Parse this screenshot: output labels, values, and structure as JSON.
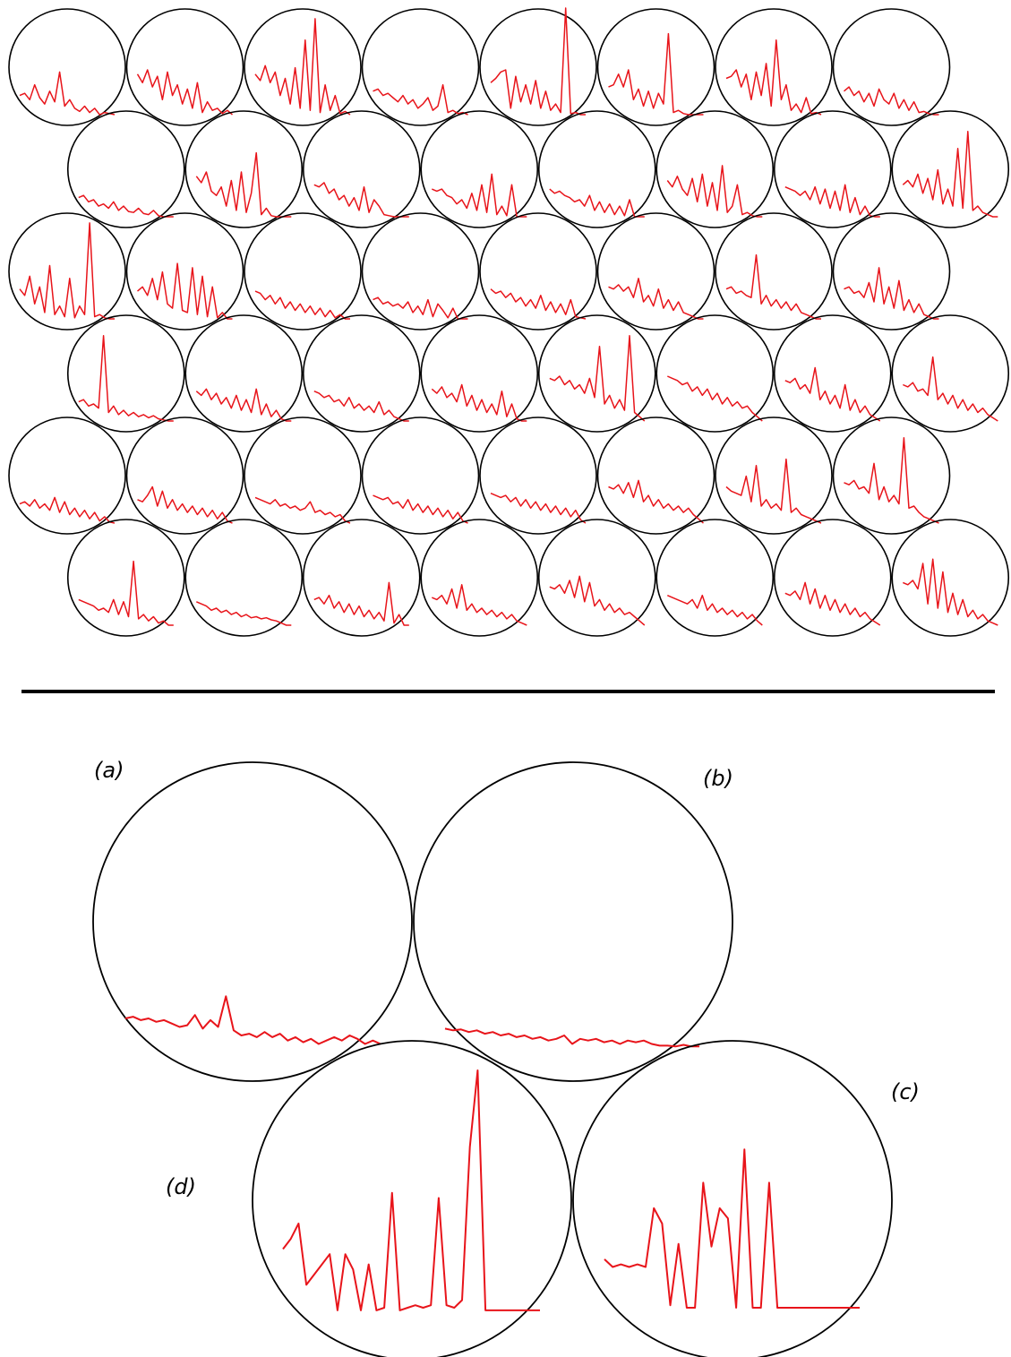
{
  "colors": {
    "background": "#ffffff",
    "circle_stroke": "#000000",
    "trace": "#e8141a",
    "divider": "#000000"
  },
  "grid": {
    "rows": 6,
    "cols": 8,
    "odd_rows_offset": true,
    "traces": [
      [
        [
          0.82,
          0.8,
          0.86,
          0.72,
          0.84,
          0.9,
          0.78,
          0.88,
          0.6,
          0.92,
          0.86,
          0.94,
          0.97,
          0.92,
          0.98,
          0.94,
          1,
          0.98,
          0.99,
          1
        ],
        [
          0.62,
          0.7,
          0.58,
          0.74,
          0.64,
          0.86,
          0.6,
          0.82,
          0.72,
          0.9,
          0.76,
          0.94,
          0.7,
          0.98,
          0.88,
          0.96,
          0.94,
          0.99,
          0.96,
          1
        ],
        [
          0.62,
          0.68,
          0.54,
          0.7,
          0.6,
          0.82,
          0.66,
          0.9,
          0.56,
          0.94,
          0.3,
          0.96,
          0.1,
          0.98,
          0.72,
          0.96,
          0.82,
          0.99,
          0.97,
          1
        ],
        [
          0.78,
          0.76,
          0.82,
          0.8,
          0.84,
          0.88,
          0.82,
          0.9,
          0.86,
          0.94,
          0.9,
          0.84,
          0.96,
          0.92,
          0.72,
          0.98,
          0.96,
          0.99,
          0.98,
          1
        ],
        [
          0.7,
          0.66,
          0.6,
          0.58,
          0.94,
          0.64,
          0.88,
          0.72,
          0.9,
          0.68,
          0.94,
          0.78,
          0.96,
          0.9,
          0.98,
          0.0,
          0.99,
          0.98,
          1,
          1
        ],
        [
          0.74,
          0.72,
          0.62,
          0.74,
          0.58,
          0.86,
          0.76,
          0.92,
          0.78,
          0.94,
          0.8,
          0.9,
          0.24,
          0.98,
          0.96,
          0.99,
          1,
          1,
          1,
          1
        ],
        [
          0.66,
          0.64,
          0.58,
          0.74,
          0.62,
          0.86,
          0.6,
          0.82,
          0.52,
          0.92,
          0.3,
          0.86,
          0.72,
          0.96,
          0.9,
          0.98,
          0.84,
          0.99,
          0.98,
          1
        ],
        [
          0.78,
          0.74,
          0.82,
          0.78,
          0.88,
          0.8,
          0.92,
          0.76,
          0.86,
          0.9,
          0.8,
          0.94,
          0.86,
          0.96,
          0.88,
          0.98,
          0.97,
          0.99,
          1,
          1
        ]
      ],
      [
        [
          0.82,
          0.8,
          0.86,
          0.84,
          0.9,
          0.88,
          0.92,
          0.86,
          0.94,
          0.9,
          0.95,
          0.96,
          0.92,
          0.97,
          0.98,
          0.94,
          0.99,
          1,
          1,
          1
        ],
        [
          0.62,
          0.68,
          0.58,
          0.76,
          0.8,
          0.72,
          0.9,
          0.66,
          0.94,
          0.58,
          0.96,
          0.78,
          0.4,
          0.98,
          0.92,
          0.99,
          1,
          1,
          1,
          1
        ],
        [
          0.7,
          0.72,
          0.68,
          0.78,
          0.74,
          0.84,
          0.8,
          0.9,
          0.82,
          0.94,
          0.72,
          0.96,
          0.84,
          0.9,
          0.98,
          0.99,
          1,
          1,
          1,
          1
        ],
        [
          0.74,
          0.76,
          0.74,
          0.8,
          0.82,
          0.88,
          0.84,
          0.92,
          0.78,
          0.94,
          0.7,
          0.96,
          0.6,
          0.98,
          0.9,
          0.99,
          0.7,
          1,
          1,
          1
        ],
        [
          0.74,
          0.78,
          0.76,
          0.8,
          0.82,
          0.86,
          0.84,
          0.9,
          0.8,
          0.94,
          0.86,
          0.96,
          0.88,
          0.98,
          0.9,
          0.99,
          0.84,
          1,
          1,
          1
        ],
        [
          0.66,
          0.72,
          0.62,
          0.74,
          0.8,
          0.64,
          0.86,
          0.6,
          0.9,
          0.68,
          0.94,
          0.52,
          0.96,
          0.9,
          0.7,
          0.98,
          0.96,
          0.99,
          1,
          1
        ],
        [
          0.72,
          0.74,
          0.76,
          0.8,
          0.76,
          0.84,
          0.72,
          0.88,
          0.74,
          0.92,
          0.76,
          0.94,
          0.7,
          0.96,
          0.82,
          0.98,
          0.9,
          0.99,
          1,
          1
        ],
        [
          0.7,
          0.66,
          0.72,
          0.6,
          0.78,
          0.64,
          0.84,
          0.56,
          0.88,
          0.74,
          0.9,
          0.36,
          0.92,
          0.2,
          0.94,
          0.9,
          0.96,
          0.98,
          1,
          1
        ]
      ],
      [
        [
          0.72,
          0.78,
          0.6,
          0.86,
          0.7,
          0.94,
          0.5,
          0.96,
          0.88,
          0.98,
          0.62,
          0.99,
          0.88,
          0.96,
          0.1,
          0.98,
          0.96,
          0.99,
          1,
          1
        ],
        [
          0.74,
          0.7,
          0.78,
          0.62,
          0.82,
          0.56,
          0.86,
          0.9,
          0.48,
          0.92,
          0.94,
          0.52,
          0.96,
          0.6,
          0.98,
          0.7,
          0.99,
          0.94,
          1,
          1
        ],
        [
          0.74,
          0.76,
          0.82,
          0.78,
          0.86,
          0.8,
          0.9,
          0.84,
          0.92,
          0.86,
          0.94,
          0.88,
          0.96,
          0.9,
          0.98,
          0.92,
          0.99,
          0.96,
          1,
          1
        ],
        [
          0.82,
          0.8,
          0.86,
          0.84,
          0.88,
          0.86,
          0.9,
          0.84,
          0.94,
          0.88,
          0.96,
          0.82,
          0.98,
          0.86,
          0.92,
          0.99,
          0.9,
          1,
          1,
          1
        ],
        [
          0.72,
          0.76,
          0.74,
          0.8,
          0.76,
          0.84,
          0.8,
          0.88,
          0.82,
          0.9,
          0.78,
          0.92,
          0.84,
          0.94,
          0.86,
          0.96,
          0.82,
          0.98,
          0.99,
          1
        ],
        [
          0.7,
          0.72,
          0.68,
          0.74,
          0.7,
          0.8,
          0.62,
          0.84,
          0.78,
          0.88,
          0.72,
          0.9,
          0.82,
          0.92,
          0.84,
          0.94,
          0.96,
          0.98,
          1,
          1
        ],
        [
          0.72,
          0.7,
          0.76,
          0.74,
          0.78,
          0.8,
          0.4,
          0.86,
          0.78,
          0.88,
          0.82,
          0.9,
          0.84,
          0.92,
          0.86,
          0.94,
          0.96,
          0.98,
          1,
          1
        ],
        [
          0.72,
          0.7,
          0.76,
          0.74,
          0.8,
          0.66,
          0.84,
          0.52,
          0.86,
          0.7,
          0.9,
          0.64,
          0.92,
          0.82,
          0.94,
          0.86,
          0.96,
          0.98,
          1,
          1
        ]
      ],
      [
        [
          0.82,
          0.8,
          0.86,
          0.84,
          0.88,
          0.2,
          0.92,
          0.86,
          0.94,
          0.9,
          0.95,
          0.92,
          0.96,
          0.94,
          0.97,
          0.95,
          0.98,
          0.99,
          1,
          1
        ],
        [
          0.72,
          0.76,
          0.7,
          0.8,
          0.74,
          0.84,
          0.78,
          0.88,
          0.76,
          0.9,
          0.8,
          0.92,
          0.7,
          0.94,
          0.84,
          0.96,
          0.9,
          0.98,
          1,
          1
        ],
        [
          0.72,
          0.74,
          0.78,
          0.76,
          0.82,
          0.8,
          0.86,
          0.78,
          0.88,
          0.84,
          0.9,
          0.86,
          0.92,
          0.82,
          0.94,
          0.9,
          0.96,
          0.98,
          1,
          1
        ],
        [
          0.7,
          0.74,
          0.68,
          0.78,
          0.74,
          0.82,
          0.66,
          0.86,
          0.76,
          0.9,
          0.8,
          0.92,
          0.84,
          0.94,
          0.72,
          0.96,
          0.84,
          0.98,
          1,
          1
        ],
        [
          0.6,
          0.62,
          0.58,
          0.66,
          0.62,
          0.7,
          0.66,
          0.74,
          0.6,
          0.78,
          0.3,
          0.84,
          0.76,
          0.88,
          0.8,
          0.9,
          0.2,
          0.92,
          0.96,
          1
        ],
        [
          0.58,
          0.6,
          0.62,
          0.66,
          0.64,
          0.72,
          0.68,
          0.76,
          0.7,
          0.8,
          0.74,
          0.84,
          0.78,
          0.86,
          0.82,
          0.88,
          0.86,
          0.92,
          0.96,
          1
        ],
        [
          0.62,
          0.64,
          0.6,
          0.7,
          0.66,
          0.74,
          0.5,
          0.8,
          0.72,
          0.84,
          0.76,
          0.88,
          0.66,
          0.9,
          0.8,
          0.92,
          0.86,
          0.94,
          0.97,
          1
        ],
        [
          0.66,
          0.68,
          0.64,
          0.72,
          0.7,
          0.76,
          0.4,
          0.8,
          0.74,
          0.84,
          0.76,
          0.88,
          0.8,
          0.9,
          0.84,
          0.92,
          0.88,
          0.94,
          0.97,
          1
        ]
      ],
      [
        [
          0.82,
          0.8,
          0.84,
          0.78,
          0.86,
          0.82,
          0.88,
          0.76,
          0.9,
          0.8,
          0.92,
          0.86,
          0.94,
          0.88,
          0.96,
          0.9,
          0.98,
          0.94,
          0.99,
          1
        ],
        [
          0.78,
          0.8,
          0.74,
          0.66,
          0.84,
          0.7,
          0.86,
          0.78,
          0.88,
          0.82,
          0.9,
          0.84,
          0.92,
          0.86,
          0.94,
          0.88,
          0.96,
          0.9,
          0.98,
          1
        ],
        [
          0.76,
          0.78,
          0.8,
          0.82,
          0.78,
          0.84,
          0.82,
          0.86,
          0.84,
          0.88,
          0.86,
          0.8,
          0.9,
          0.88,
          0.92,
          0.9,
          0.94,
          0.92,
          0.98,
          1
        ],
        [
          0.74,
          0.76,
          0.78,
          0.76,
          0.82,
          0.8,
          0.86,
          0.78,
          0.88,
          0.82,
          0.9,
          0.84,
          0.92,
          0.86,
          0.94,
          0.88,
          0.96,
          0.9,
          0.98,
          1
        ],
        [
          0.72,
          0.74,
          0.76,
          0.74,
          0.8,
          0.76,
          0.84,
          0.78,
          0.86,
          0.8,
          0.88,
          0.82,
          0.9,
          0.84,
          0.92,
          0.86,
          0.94,
          0.88,
          0.97,
          1
        ],
        [
          0.66,
          0.68,
          0.64,
          0.72,
          0.62,
          0.76,
          0.6,
          0.8,
          0.74,
          0.84,
          0.78,
          0.86,
          0.82,
          0.88,
          0.84,
          0.9,
          0.86,
          0.92,
          0.96,
          1
        ],
        [
          0.66,
          0.7,
          0.72,
          0.74,
          0.56,
          0.8,
          0.46,
          0.84,
          0.78,
          0.86,
          0.82,
          0.88,
          0.4,
          0.9,
          0.86,
          0.92,
          0.94,
          0.96,
          0.98,
          1
        ],
        [
          0.62,
          0.64,
          0.6,
          0.68,
          0.66,
          0.72,
          0.44,
          0.78,
          0.66,
          0.8,
          0.74,
          0.82,
          0.2,
          0.86,
          0.84,
          0.9,
          0.94,
          0.96,
          0.98,
          1
        ]
      ],
      [
        [
          0.76,
          0.78,
          0.8,
          0.82,
          0.86,
          0.84,
          0.88,
          0.76,
          0.9,
          0.78,
          0.92,
          0.4,
          0.94,
          0.9,
          0.96,
          0.92,
          0.98,
          0.96,
          1,
          1
        ],
        [
          0.78,
          0.8,
          0.82,
          0.86,
          0.84,
          0.88,
          0.86,
          0.9,
          0.88,
          0.92,
          0.9,
          0.93,
          0.92,
          0.94,
          0.93,
          0.95,
          0.96,
          0.98,
          1,
          1
        ],
        [
          0.76,
          0.74,
          0.8,
          0.72,
          0.84,
          0.78,
          0.88,
          0.8,
          0.9,
          0.82,
          0.92,
          0.86,
          0.94,
          0.88,
          0.96,
          0.6,
          0.98,
          0.9,
          1,
          1
        ],
        [
          0.74,
          0.76,
          0.72,
          0.8,
          0.66,
          0.84,
          0.62,
          0.86,
          0.8,
          0.88,
          0.84,
          0.9,
          0.86,
          0.92,
          0.88,
          0.94,
          0.9,
          0.96,
          0.98,
          1
        ],
        [
          0.64,
          0.66,
          0.62,
          0.7,
          0.58,
          0.74,
          0.54,
          0.78,
          0.6,
          0.82,
          0.76,
          0.86,
          0.8,
          0.88,
          0.84,
          0.9,
          0.88,
          0.92,
          0.96,
          1
        ],
        [
          0.72,
          0.74,
          0.76,
          0.78,
          0.8,
          0.76,
          0.84,
          0.72,
          0.86,
          0.8,
          0.88,
          0.84,
          0.9,
          0.86,
          0.92,
          0.88,
          0.94,
          0.9,
          0.96,
          1
        ],
        [
          0.7,
          0.72,
          0.68,
          0.76,
          0.6,
          0.8,
          0.66,
          0.84,
          0.72,
          0.86,
          0.76,
          0.88,
          0.8,
          0.9,
          0.84,
          0.92,
          0.88,
          0.94,
          0.97,
          1
        ],
        [
          0.6,
          0.62,
          0.58,
          0.66,
          0.42,
          0.8,
          0.38,
          0.84,
          0.5,
          0.88,
          0.7,
          0.9,
          0.76,
          0.92,
          0.86,
          0.94,
          0.9,
          0.96,
          0.98,
          1
        ]
      ]
    ]
  },
  "detail_panels": [
    {
      "id": "a",
      "label": "(a)",
      "trace": [
        0.6,
        0.58,
        0.62,
        0.6,
        0.64,
        0.62,
        0.66,
        0.7,
        0.68,
        0.56,
        0.72,
        0.62,
        0.7,
        0.34,
        0.74,
        0.8,
        0.78,
        0.82,
        0.76,
        0.82,
        0.78,
        0.86,
        0.82,
        0.88,
        0.84,
        0.9,
        0.86,
        0.82,
        0.86,
        0.8,
        0.84,
        0.9,
        0.86,
        0.9
      ]
    },
    {
      "id": "b",
      "label": "(b)",
      "trace": [
        0.72,
        0.74,
        0.73,
        0.76,
        0.74,
        0.78,
        0.76,
        0.8,
        0.78,
        0.82,
        0.8,
        0.84,
        0.82,
        0.86,
        0.84,
        0.8,
        0.9,
        0.84,
        0.86,
        0.84,
        0.88,
        0.86,
        0.9,
        0.86,
        0.88,
        0.86,
        0.9,
        0.92,
        0.92,
        0.93,
        0.91,
        0.93,
        0.93
      ]
    },
    {
      "id": "c",
      "label": "(c)",
      "trace": [
        0.74,
        0.77,
        0.76,
        0.77,
        0.76,
        0.77,
        0.54,
        0.6,
        0.92,
        0.68,
        0.93,
        0.93,
        0.44,
        0.69,
        0.54,
        0.58,
        0.93,
        0.31,
        0.93,
        0.93,
        0.44,
        0.93,
        0.93,
        0.93,
        0.93,
        0.93,
        0.93,
        0.93,
        0.93,
        0.93,
        0.93,
        0.93
      ]
    },
    {
      "id": "d",
      "label": "(d)",
      "trace": [
        0.7,
        0.66,
        0.6,
        0.84,
        0.8,
        0.76,
        0.72,
        0.94,
        0.72,
        0.78,
        0.94,
        0.76,
        0.94,
        0.93,
        0.48,
        0.94,
        0.93,
        0.92,
        0.93,
        0.92,
        0.5,
        0.92,
        0.93,
        0.9,
        0.3,
        0.0,
        0.94,
        0.94,
        0.94,
        0.94,
        0.94,
        0.94,
        0.94,
        0.94
      ]
    }
  ]
}
